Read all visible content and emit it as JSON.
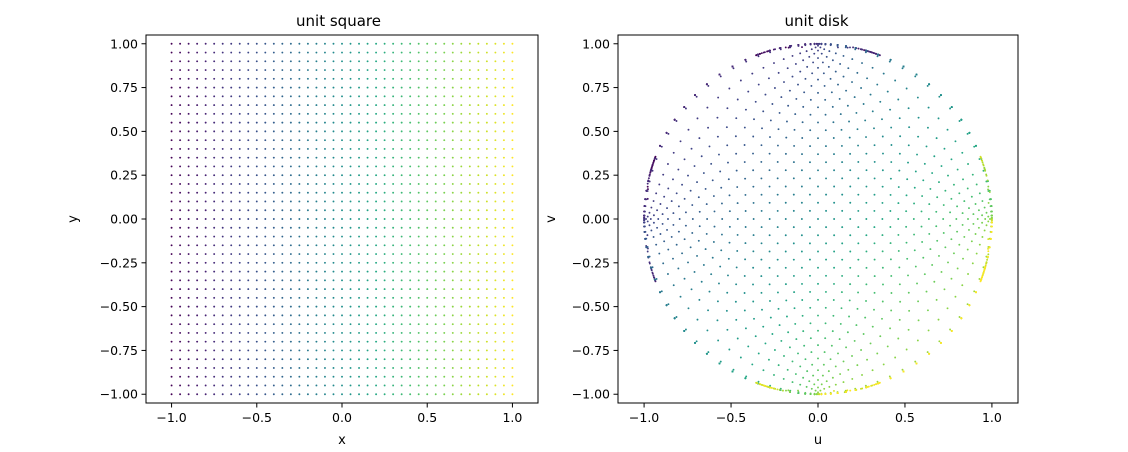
{
  "chart_data": [
    {
      "type": "scatter",
      "title": "unit square",
      "xlabel": "x",
      "ylabel": "y",
      "xlim": [
        -1.15,
        1.15
      ],
      "ylim": [
        -1.05,
        1.05
      ],
      "xticks": [
        -1.0,
        -0.5,
        0.0,
        0.5,
        1.0
      ],
      "xtick_labels": [
        "−1.0",
        "−0.5",
        "0.0",
        "0.5",
        "1.0"
      ],
      "yticks": [
        1.0,
        0.75,
        0.5,
        0.25,
        0.0,
        -0.25,
        -0.5,
        -0.75,
        -1.0
      ],
      "ytick_labels": [
        "1.00",
        "0.75",
        "0.50",
        "0.25",
        "0.00",
        "−0.25",
        "−0.50",
        "−0.75",
        "−1.00"
      ],
      "grid": false,
      "colormap": "viridis",
      "color_by": "x",
      "points": {
        "x_range": [
          -1.0,
          1.0
        ],
        "y_range": [
          -1.0,
          1.0
        ],
        "grid_size": [
          41,
          41
        ]
      }
    },
    {
      "type": "scatter",
      "title": "unit disk",
      "xlabel": "u",
      "ylabel": "v",
      "xlim": [
        -1.15,
        1.15
      ],
      "ylim": [
        -1.05,
        1.05
      ],
      "xticks": [
        -1.0,
        -0.5,
        0.0,
        0.5,
        1.0
      ],
      "xtick_labels": [
        "−1.0",
        "−0.5",
        "0.0",
        "0.5",
        "1.0"
      ],
      "yticks": [
        1.0,
        0.75,
        0.5,
        0.25,
        0.0,
        -0.25,
        -0.5,
        -0.75,
        -1.0
      ],
      "ytick_labels": [
        "1.00",
        "0.75",
        "0.50",
        "0.25",
        "0.00",
        "−0.25",
        "−0.50",
        "−0.75",
        "−1.00"
      ],
      "grid": false,
      "colormap": "viridis",
      "color_by": "x",
      "mapping": "conformal square-to-disk",
      "points": {
        "x_range": [
          -1.0,
          1.0
        ],
        "y_range": [
          -1.0,
          1.0
        ],
        "grid_size": [
          41,
          41
        ]
      }
    }
  ]
}
